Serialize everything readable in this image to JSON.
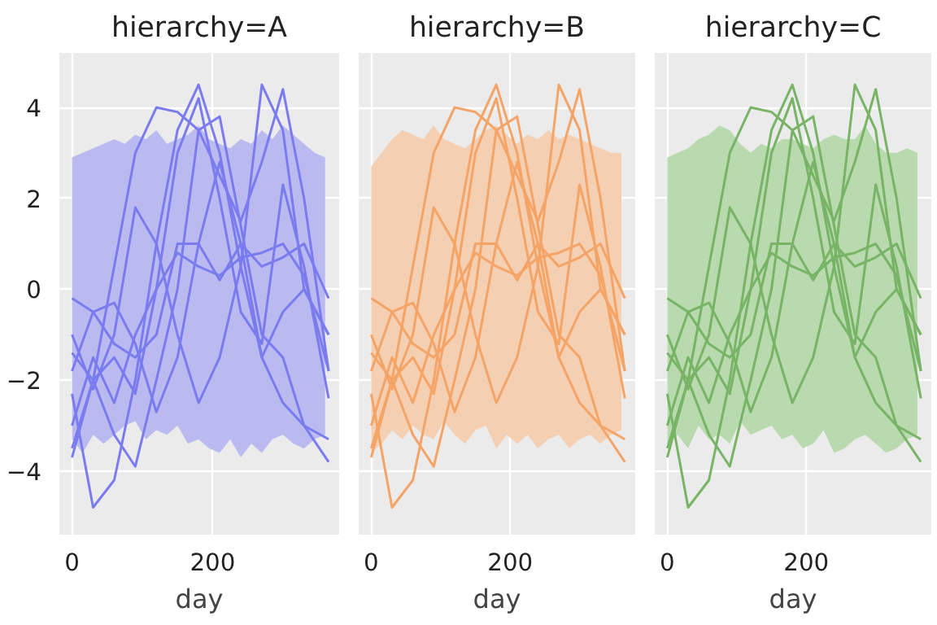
{
  "chart_data": [
    {
      "type": "line",
      "title": "hierarchy=A",
      "xlabel": "day",
      "xlim": [
        -18,
        380
      ],
      "ylim": [
        -5.4,
        5.2
      ],
      "xticks": [
        0,
        200
      ],
      "yticks": [
        -4,
        -2,
        0,
        2,
        4
      ],
      "grid": true,
      "tick_labels": "xy",
      "line_style": "solid",
      "series": [
        {
          "color": "#babaf0",
          "x": [
            0,
            15,
            30,
            45,
            60,
            75,
            90,
            105,
            120,
            135,
            150,
            165,
            180,
            195,
            210,
            225,
            240,
            255,
            270,
            285,
            300,
            315,
            330,
            345,
            360
          ],
          "values": [
            null,
            null,
            null,
            null,
            null,
            null,
            null,
            null,
            null,
            null,
            null,
            null,
            null,
            null,
            null,
            null,
            null,
            null,
            null,
            null,
            null,
            null,
            null,
            null,
            null
          ],
          "upper": [
            2.9,
            3.0,
            3.1,
            3.2,
            3.3,
            3.2,
            3.4,
            3.3,
            3.5,
            3.2,
            3.3,
            3.4,
            3.6,
            3.3,
            3.2,
            3.1,
            3.3,
            3.2,
            3.5,
            3.3,
            3.6,
            3.4,
            3.2,
            3.0,
            2.9
          ],
          "lower": [
            -3.3,
            -3.6,
            -3.2,
            -3.4,
            -3.2,
            -3.0,
            -2.9,
            -3.3,
            -3.1,
            -3.2,
            -3.0,
            -3.4,
            -3.3,
            -3.5,
            -3.6,
            -3.3,
            -3.7,
            -3.4,
            -3.6,
            -3.3,
            -3.2,
            -3.4,
            -3.5,
            -3.3,
            -3.2
          ]
        },
        {
          "color": "#7b7bf0",
          "values": [
            -2.3,
            -4.8,
            -4.2,
            -2,
            1,
            3.5,
            4.5,
            3,
            0.5,
            -1.5,
            -2.5,
            -3,
            -3.3
          ]
        },
        {
          "color": "#7b7bf0",
          "values": [
            -3.7,
            -2,
            0.5,
            3,
            4,
            3.9,
            3.5,
            2.5,
            1.5,
            2.8,
            4.4,
            2,
            -1.8
          ]
        },
        {
          "color": "#7b7bf0",
          "values": [
            -1,
            -2.2,
            -1,
            1.8,
            1,
            -1,
            -2.5,
            -1.5,
            0.5,
            4.5,
            3.5,
            0,
            -1
          ]
        },
        {
          "color": "#7b7bf0",
          "values": [
            -0.2,
            -0.5,
            -0.3,
            -1.2,
            -2.7,
            -1.5,
            1,
            2.8,
            1,
            -1.5,
            -0.5,
            0,
            -1
          ]
        },
        {
          "color": "#7b7bf0",
          "values": [
            -1.8,
            -0.5,
            -1.2,
            -1.5,
            -1,
            1,
            1,
            0.2,
            1,
            0.5,
            0.7,
            1,
            -0.2
          ]
        },
        {
          "color": "#7b7bf0",
          "values": [
            -3,
            -1.5,
            -2.5,
            -1,
            0,
            0.8,
            0.5,
            0.3,
            0.7,
            0.8,
            1,
            0.3,
            -1.8
          ]
        },
        {
          "color": "#7b7bf0",
          "values": [
            -1.4,
            -2,
            -1.5,
            -2.3,
            0,
            3,
            4.2,
            2,
            -0.5,
            -1.2,
            2.3,
            0.5,
            -2.4
          ]
        },
        {
          "color": "#7b7bf0",
          "values": [
            -3.5,
            -2,
            -3.2,
            -3.9,
            -2,
            0,
            3.5,
            3.8,
            1.4,
            -1,
            -1.5,
            -3,
            -3.8
          ]
        }
      ],
      "x": [
        0,
        30,
        60,
        90,
        120,
        150,
        180,
        210,
        240,
        270,
        300,
        330,
        365
      ]
    },
    {
      "type": "line",
      "title": "hierarchy=B",
      "xlabel": "day",
      "xlim": [
        -18,
        380
      ],
      "ylim": [
        -5.4,
        5.2
      ],
      "xticks": [
        0,
        200
      ],
      "yticks": [
        -4,
        -2,
        0,
        2,
        4
      ],
      "grid": true,
      "tick_labels": "x",
      "line_style": "solid",
      "series": [
        {
          "color": "#f5cfb2",
          "x": [
            0,
            15,
            30,
            45,
            60,
            75,
            90,
            105,
            120,
            135,
            150,
            165,
            180,
            195,
            210,
            225,
            240,
            255,
            270,
            285,
            300,
            315,
            330,
            345,
            360
          ],
          "values": [
            null,
            null,
            null,
            null,
            null,
            null,
            null,
            null,
            null,
            null,
            null,
            null,
            null,
            null,
            null,
            null,
            null,
            null,
            null,
            null,
            null,
            null,
            null,
            null,
            null
          ],
          "upper": [
            2.7,
            3.0,
            3.3,
            3.5,
            3.4,
            3.3,
            3.6,
            3.3,
            3.2,
            3.1,
            3.3,
            3.5,
            3.6,
            3.4,
            3.2,
            3.4,
            3.3,
            3.5,
            3.3,
            3.4,
            3.3,
            3.2,
            3.1,
            3.0,
            3.0
          ],
          "lower": [
            -3.6,
            -3.4,
            -3.1,
            -3.3,
            -3.0,
            -3.2,
            -3.3,
            -2.9,
            -3.2,
            -3.4,
            -3.1,
            -3.0,
            -3.5,
            -3.2,
            -3.4,
            -3.2,
            -3.5,
            -3.3,
            -3.2,
            -3.5,
            -3.3,
            -3.2,
            -3.4,
            -3.2,
            -3.1
          ]
        },
        {
          "color": "#f4a466",
          "values": [
            -2.3,
            -4.8,
            -4.2,
            -2,
            1,
            3.5,
            4.5,
            3,
            0.5,
            -1.5,
            -2.5,
            -3,
            -3.3
          ]
        },
        {
          "color": "#f4a466",
          "values": [
            -3.7,
            -2,
            0.5,
            3,
            4,
            3.9,
            3.5,
            2.5,
            1.5,
            2.8,
            4.4,
            2,
            -1.8
          ]
        },
        {
          "color": "#f4a466",
          "values": [
            -1,
            -2.2,
            -1,
            1.8,
            1,
            -1,
            -2.5,
            -1.5,
            0.5,
            4.5,
            3.5,
            0,
            -1
          ]
        },
        {
          "color": "#f4a466",
          "values": [
            -0.2,
            -0.5,
            -0.3,
            -1.2,
            -2.7,
            -1.5,
            1,
            2.8,
            1,
            -1.5,
            -0.5,
            0,
            -1
          ]
        },
        {
          "color": "#f4a466",
          "values": [
            -1.8,
            -0.5,
            -1.2,
            -1.5,
            -1,
            1,
            1,
            0.2,
            1,
            0.5,
            0.7,
            1,
            -0.2
          ]
        },
        {
          "color": "#f4a466",
          "values": [
            -3,
            -1.5,
            -2.5,
            -1,
            0,
            0.8,
            0.5,
            0.3,
            0.7,
            0.8,
            1,
            0.3,
            -1.8
          ]
        },
        {
          "color": "#f4a466",
          "values": [
            -1.4,
            -2,
            -1.5,
            -2.3,
            0,
            3,
            4.2,
            2,
            -0.5,
            -1.2,
            2.3,
            0.5,
            -2.4
          ]
        },
        {
          "color": "#f4a466",
          "values": [
            -3.5,
            -2,
            -3.2,
            -3.9,
            -2,
            0,
            3.5,
            3.8,
            1.4,
            -1,
            -1.5,
            -3,
            -3.8
          ]
        }
      ],
      "x": [
        0,
        30,
        60,
        90,
        120,
        150,
        180,
        210,
        240,
        270,
        300,
        330,
        365
      ]
    },
    {
      "type": "line",
      "title": "hierarchy=C",
      "xlabel": "day",
      "xlim": [
        -18,
        380
      ],
      "ylim": [
        -5.4,
        5.2
      ],
      "xticks": [
        0,
        200
      ],
      "yticks": [
        -4,
        -2,
        0,
        2,
        4
      ],
      "grid": true,
      "tick_labels": "x",
      "line_style": "solid",
      "series": [
        {
          "color": "#b9d9af",
          "x": [
            0,
            15,
            30,
            45,
            60,
            75,
            90,
            105,
            120,
            135,
            150,
            165,
            180,
            195,
            210,
            225,
            240,
            255,
            270,
            285,
            300,
            315,
            330,
            345,
            360
          ],
          "values": [
            null,
            null,
            null,
            null,
            null,
            null,
            null,
            null,
            null,
            null,
            null,
            null,
            null,
            null,
            null,
            null,
            null,
            null,
            null,
            null,
            null,
            null,
            null,
            null,
            null
          ],
          "upper": [
            2.9,
            3.0,
            3.1,
            3.3,
            3.4,
            3.6,
            3.5,
            3.2,
            3.0,
            3.2,
            3.1,
            3.3,
            3.3,
            3.2,
            3.1,
            3.3,
            3.4,
            3.3,
            3.3,
            3.6,
            3.2,
            3.0,
            3.0,
            3.1,
            3.0
          ],
          "lower": [
            -3.4,
            -3.2,
            -3.5,
            -3.0,
            -3.3,
            -3.2,
            -3.4,
            -2.9,
            -3.2,
            -3.1,
            -3.0,
            -3.3,
            -3.2,
            -3.5,
            -3.4,
            -3.1,
            -3.6,
            -3.5,
            -3.3,
            -3.2,
            -3.4,
            -3.6,
            -3.5,
            -3.3,
            -3.2
          ]
        },
        {
          "color": "#78b466",
          "values": [
            -2.3,
            -4.8,
            -4.2,
            -2,
            1,
            3.5,
            4.5,
            3,
            0.5,
            -1.5,
            -2.5,
            -3,
            -3.3
          ]
        },
        {
          "color": "#78b466",
          "values": [
            -3.7,
            -2,
            0.5,
            3,
            4,
            3.9,
            3.5,
            2.5,
            1.5,
            2.8,
            4.4,
            2,
            -1.8
          ]
        },
        {
          "color": "#78b466",
          "values": [
            -1,
            -2.2,
            -1,
            1.8,
            1,
            -1,
            -2.5,
            -1.5,
            0.5,
            4.5,
            3.5,
            0,
            -1
          ]
        },
        {
          "color": "#78b466",
          "values": [
            -0.2,
            -0.5,
            -0.3,
            -1.2,
            -2.7,
            -1.5,
            1,
            2.8,
            1,
            -1.5,
            -0.5,
            0,
            -1
          ]
        },
        {
          "color": "#78b466",
          "values": [
            -1.8,
            -0.5,
            -1.2,
            -1.5,
            -1,
            1,
            1,
            0.2,
            1,
            0.5,
            0.7,
            1,
            -0.2
          ]
        },
        {
          "color": "#78b466",
          "values": [
            -3,
            -1.5,
            -2.5,
            -1,
            0,
            0.8,
            0.5,
            0.3,
            0.7,
            0.8,
            1,
            0.3,
            -1.8
          ]
        },
        {
          "color": "#78b466",
          "values": [
            -1.4,
            -2,
            -1.5,
            -2.3,
            0,
            3,
            4.2,
            2,
            -0.5,
            -1.2,
            2.3,
            0.5,
            -2.4
          ]
        },
        {
          "color": "#78b466",
          "values": [
            -3.5,
            -2,
            -3.2,
            -3.9,
            -2,
            0,
            3.5,
            3.8,
            1.4,
            -1,
            -1.5,
            -3,
            -3.8
          ]
        }
      ],
      "x": [
        0,
        30,
        60,
        90,
        120,
        150,
        180,
        210,
        240,
        270,
        300,
        330,
        365
      ]
    }
  ]
}
